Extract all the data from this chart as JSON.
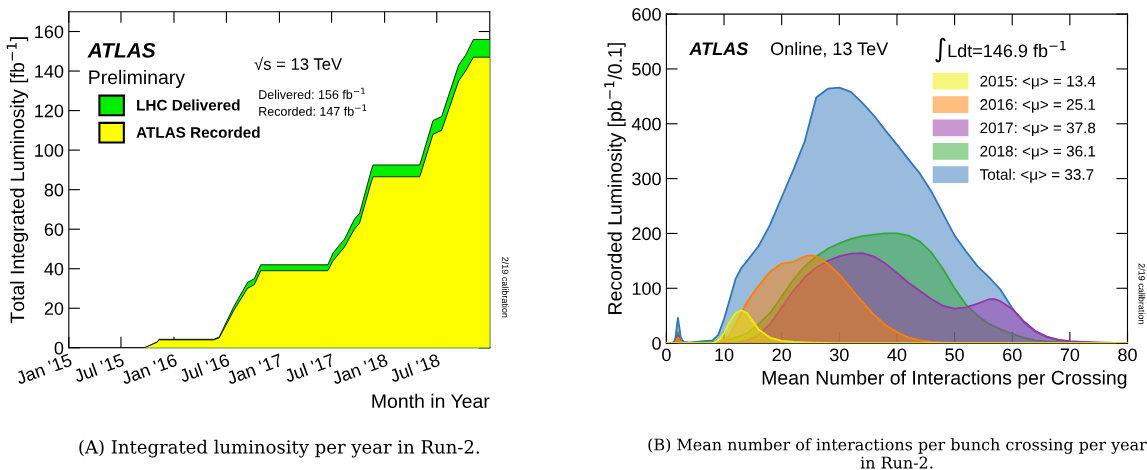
{
  "chart_data": [
    {
      "type": "area",
      "xlabel": "Month in Year",
      "ylabel": "Total Integrated Luminosity [fb$^{−1}$]",
      "x": [
        "2015-01-01",
        "2015-09-20",
        "2015-11-04",
        "2015-11-10",
        "2016-05-18",
        "2016-06-06",
        "2016-07-27",
        "2016-09-12",
        "2016-10-06",
        "2016-10-28",
        "2017-06-18",
        "2017-07-06",
        "2017-08-15",
        "2017-09-18",
        "2017-10-06",
        "2017-11-16",
        "2017-11-22",
        "2018-05-03",
        "2018-06-18",
        "2018-07-18",
        "2018-09-15",
        "2018-10-09",
        "2018-11-05",
        "2019-01-01"
      ],
      "series": [
        {
          "name": "LHC Delivered",
          "color": "#00ee00",
          "values": [
            0,
            0,
            3,
            4.3,
            4.3,
            5.5,
            21,
            33,
            35,
            42,
            42,
            48,
            55,
            65,
            68,
            90,
            92.5,
            92.5,
            115,
            117,
            143,
            148,
            156,
            156
          ]
        },
        {
          "name": "ATLAS Recorded",
          "color": "#ffff00",
          "values": [
            0,
            0,
            2.8,
            4,
            4,
            5,
            19,
            30,
            32,
            39,
            39,
            44,
            51,
            60,
            63,
            84,
            86.5,
            86.5,
            108,
            110,
            135,
            140,
            147,
            147
          ]
        }
      ],
      "xlim": [
        "2015-01-01",
        "2019-01-01"
      ],
      "xticks": [
        {
          "value": "2015-01-01",
          "label": "Jan '15"
        },
        {
          "value": "2015-07-01",
          "label": "Jul '15"
        },
        {
          "value": "2016-01-01",
          "label": "Jan '16"
        },
        {
          "value": "2016-07-01",
          "label": "Jul '16"
        },
        {
          "value": "2017-01-01",
          "label": "Jan '17"
        },
        {
          "value": "2017-07-01",
          "label": "Jul '17"
        },
        {
          "value": "2018-01-01",
          "label": "Jan '18"
        },
        {
          "value": "2018-07-01",
          "label": "Jul '18"
        }
      ],
      "ylim": [
        0,
        170
      ],
      "yticks": [
        0,
        20,
        40,
        60,
        80,
        100,
        120,
        140,
        160
      ],
      "grid": false,
      "legend": "top left",
      "annotations": [
        "ATLAS",
        "Preliminary",
        "√s = 13 TeV",
        "Delivered: 156 fb$^{−1}$",
        "Recorded: 147 fb$^{−1}$",
        "2/19 calibration",
        "(A) Integrated luminosity per year in Run-2."
      ]
    },
    {
      "type": "area",
      "xlabel": "Mean Number of Interactions per Crossing",
      "ylabel": "Recorded Luminosity [pb$^{−1}$/0.1]",
      "series": [
        {
          "name": "2015: <μ> = 13.4",
          "color": "#eeee00",
          "x": [
            0,
            8,
            9,
            10,
            11,
            12,
            13,
            14,
            15,
            16,
            18,
            20,
            22,
            25,
            30,
            80
          ],
          "values": [
            0,
            0,
            5,
            18,
            40,
            55,
            60,
            55,
            40,
            25,
            10,
            4,
            2,
            1,
            0,
            0
          ]
        },
        {
          "name": "2016: <μ> = 25.1",
          "color": "#ff7f00",
          "x": [
            0,
            1.5,
            2,
            2.5,
            3,
            8,
            10,
            11,
            12,
            14,
            16,
            18,
            20,
            22,
            24,
            25,
            26,
            28,
            30,
            32,
            34,
            36,
            38,
            40,
            42,
            44,
            46,
            48,
            50,
            80
          ],
          "values": [
            0,
            0,
            10,
            2,
            0,
            0,
            5,
            15,
            35,
            75,
            105,
            130,
            145,
            148,
            158,
            160,
            158,
            145,
            125,
            100,
            75,
            52,
            33,
            20,
            10,
            5,
            2,
            1,
            0,
            0
          ]
        },
        {
          "name": "2017: <μ> = 37.8",
          "color": "#9933aa",
          "x": [
            0,
            1.5,
            2,
            2.5,
            3,
            12,
            14,
            16,
            18,
            20,
            22,
            24,
            26,
            28,
            30,
            32,
            34,
            36,
            38,
            40,
            42,
            44,
            46,
            48,
            50,
            52,
            54,
            56,
            57,
            58,
            60,
            62,
            64,
            66,
            68,
            70,
            75,
            80
          ],
          "values": [
            0,
            0,
            15,
            2,
            0,
            0,
            5,
            15,
            35,
            65,
            95,
            120,
            138,
            150,
            158,
            163,
            164,
            158,
            145,
            128,
            110,
            95,
            80,
            68,
            63,
            65,
            72,
            80,
            80,
            76,
            62,
            40,
            22,
            12,
            6,
            3,
            1,
            0
          ]
        },
        {
          "name": "2018: <μ> = 36.1",
          "color": "#33aa33",
          "x": [
            0,
            1.5,
            2,
            2.5,
            3,
            8,
            10,
            12,
            14,
            16,
            18,
            20,
            22,
            24,
            26,
            28,
            30,
            32,
            34,
            36,
            38,
            40,
            42,
            44,
            46,
            48,
            50,
            52,
            54,
            56,
            58,
            60,
            62,
            64,
            66,
            70,
            80
          ],
          "values": [
            0,
            0,
            20,
            3,
            0,
            2,
            5,
            10,
            18,
            35,
            55,
            85,
            115,
            140,
            158,
            172,
            182,
            190,
            195,
            198,
            200,
            200,
            196,
            185,
            165,
            135,
            100,
            70,
            50,
            35,
            25,
            17,
            10,
            5,
            3,
            1,
            0
          ]
        },
        {
          "name": "Total: <μ> = 33.7",
          "color": "#3377bb",
          "x": [
            0,
            1,
            1.5,
            2,
            2.5,
            3,
            4,
            6,
            8,
            9,
            10,
            11,
            12,
            13,
            14,
            16,
            18,
            20,
            22,
            24,
            26,
            28,
            30,
            32,
            34,
            36,
            38,
            40,
            42,
            44,
            46,
            48,
            50,
            52,
            54,
            56,
            58,
            60,
            62,
            64,
            66,
            68,
            70,
            75,
            80
          ],
          "values": [
            0,
            0,
            5,
            46,
            10,
            2,
            1,
            3,
            5,
            15,
            44,
            80,
            117,
            137,
            150,
            177,
            216,
            266,
            315,
            368,
            448,
            464,
            466,
            458,
            438,
            415,
            388,
            362,
            335,
            309,
            276,
            236,
            196,
            167,
            140,
            120,
            97,
            64,
            38,
            21,
            11,
            6,
            3,
            1,
            0
          ]
        }
      ],
      "xlim": [
        0,
        80
      ],
      "xticks": [
        0,
        10,
        20,
        30,
        40,
        50,
        60,
        70,
        80
      ],
      "ylim": [
        0,
        600
      ],
      "yticks": [
        0,
        100,
        200,
        300,
        400,
        500,
        600
      ],
      "grid": false,
      "legend": "top right",
      "annotations": [
        "ATLAS",
        "Online, 13 TeV",
        "∫Ldt=146.9 fb$^{−1}$",
        "2/19 calibration",
        "(B) Mean number of interactions per bunch crossing per year in Run-2."
      ]
    }
  ]
}
